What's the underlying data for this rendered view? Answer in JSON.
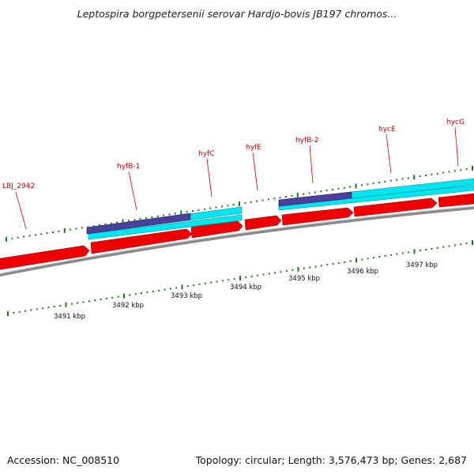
{
  "title": "Leptospira borgpetersenii serovar Hardjo-bovis JB197 chromos...",
  "footer": {
    "accession": "Accession: NC_008510",
    "summary": "Topology: circular; Length: 3,576,473 bp; Genes: 2,687"
  },
  "colors": {
    "cds_forward": "#ee0000",
    "feature_cyan": "#00e5ee",
    "feature_purple": "#4a3f9a",
    "backbone": "#888888",
    "tick": "#1a7a1a",
    "gene_label": "#cc0000"
  },
  "gene_labels": [
    "LBJ_2942",
    "hyfB-1",
    "hyfC",
    "hyfE",
    "hyfB-2",
    "hycE",
    "hycG"
  ],
  "scale_labels": [
    "3491 kbp",
    "3492 kbp",
    "3493 kbp",
    "3494 kbp",
    "3495 kbp",
    "3496 kbp",
    "3497 kbp"
  ]
}
